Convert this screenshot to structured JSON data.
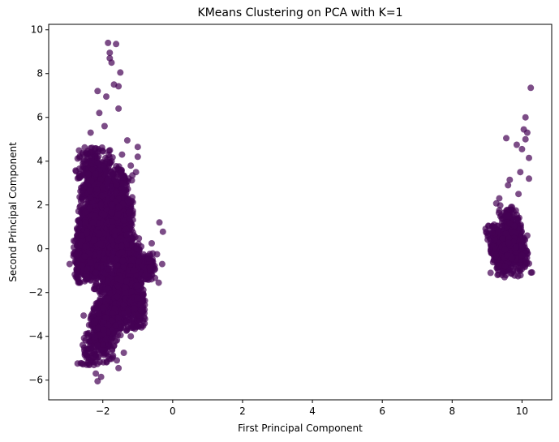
{
  "chart_data": {
    "type": "scatter",
    "title": "KMeans Clustering on PCA with K=1",
    "xlabel": "First Principal Component",
    "ylabel": "Second Principal Component",
    "xlim": [
      -3.55,
      10.85
    ],
    "ylim": [
      -6.9,
      10.25
    ],
    "x_ticks": [
      -2,
      0,
      2,
      4,
      6,
      8,
      10
    ],
    "y_ticks": [
      -6,
      -4,
      -2,
      0,
      2,
      4,
      6,
      8,
      10
    ],
    "x_tick_labels": [
      "−2",
      "0",
      "2",
      "4",
      "6",
      "8",
      "10"
    ],
    "y_tick_labels": [
      "−6",
      "−4",
      "−2",
      "0",
      "2",
      "4",
      "6",
      "8",
      "10"
    ],
    "grid": false,
    "legend": "none",
    "point_color": "#440154",
    "point_opacity": 0.7,
    "clusters_note_free": true,
    "series": [
      {
        "points": [
          [
            -1.85,
            9.4
          ],
          [
            -1.62,
            9.35
          ],
          [
            -1.8,
            8.95
          ],
          [
            -1.8,
            8.7
          ],
          [
            -1.75,
            8.5
          ],
          [
            -1.5,
            8.05
          ],
          [
            -1.68,
            7.5
          ],
          [
            -1.55,
            7.42
          ],
          [
            -2.15,
            7.2
          ],
          [
            -1.9,
            6.95
          ],
          [
            -1.3,
            4.95
          ],
          [
            -1.0,
            4.65
          ],
          [
            -1.45,
            4.3
          ],
          [
            -0.38,
            1.2
          ],
          [
            -0.28,
            0.78
          ],
          [
            -0.6,
            0.25
          ],
          [
            -0.9,
            0.1
          ],
          [
            -0.45,
            -0.25
          ],
          [
            -0.3,
            -0.7
          ],
          [
            -0.4,
            -1.55
          ],
          [
            -2.95,
            -0.7
          ],
          [
            -2.7,
            -1.55
          ],
          [
            -2.55,
            -3.05
          ],
          [
            -2.4,
            -5.0
          ],
          [
            -2.2,
            -5.7
          ],
          [
            -2.15,
            -6.05
          ],
          [
            -2.05,
            -5.85
          ],
          [
            -1.55,
            -5.45
          ],
          [
            -1.4,
            -4.75
          ],
          [
            -2.5,
            -4.8
          ],
          [
            -2.75,
            -0.3
          ],
          [
            -2.6,
            0.6
          ],
          [
            -1.95,
            5.6
          ],
          [
            -1.55,
            6.4
          ],
          [
            -1.0,
            4.2
          ],
          [
            -1.05,
            3.5
          ],
          [
            -2.35,
            5.3
          ],
          [
            -2.1,
            6.2
          ],
          [
            -1.6,
            -5.1
          ],
          [
            -1.2,
            -4.0
          ],
          [
            10.25,
            7.35
          ],
          [
            10.1,
            6.0
          ],
          [
            10.05,
            5.45
          ],
          [
            10.15,
            5.3
          ],
          [
            10.1,
            5.0
          ],
          [
            9.55,
            5.05
          ],
          [
            9.85,
            4.75
          ],
          [
            10.0,
            4.55
          ],
          [
            10.2,
            4.15
          ],
          [
            9.95,
            3.5
          ],
          [
            10.2,
            3.2
          ],
          [
            9.2,
            1.1
          ],
          [
            9.35,
            2.3
          ],
          [
            9.6,
            2.9
          ],
          [
            9.1,
            -1.1
          ],
          [
            9.3,
            -1.2
          ],
          [
            9.5,
            -1.3
          ],
          [
            9.75,
            -1.05
          ],
          [
            10.0,
            -0.3
          ],
          [
            10.15,
            0.6
          ],
          [
            9.65,
            3.15
          ],
          [
            9.9,
            2.5
          ]
        ],
        "regions": [
          {
            "cx": -2.05,
            "cy": 1.4,
            "rx": 0.55,
            "ry": 3.1,
            "tilt": -0.08,
            "n": 1400
          },
          {
            "cx": -1.8,
            "cy": -2.9,
            "rx": 0.5,
            "ry": 2.3,
            "tilt": 0.2,
            "n": 1000
          },
          {
            "cx": -2.35,
            "cy": 0.2,
            "rx": 0.4,
            "ry": 1.6,
            "tilt": 0.0,
            "n": 450
          },
          {
            "cx": -1.25,
            "cy": -0.8,
            "rx": 0.35,
            "ry": 1.4,
            "tilt": 0.0,
            "n": 450
          },
          {
            "cx": -1.45,
            "cy": 1.6,
            "rx": 0.3,
            "ry": 2.1,
            "tilt": 0.0,
            "n": 450
          },
          {
            "cx": -1.1,
            "cy": -2.6,
            "rx": 0.3,
            "ry": 1.1,
            "tilt": 0.0,
            "n": 250
          },
          {
            "cx": -2.6,
            "cy": -0.4,
            "rx": 0.25,
            "ry": 1.1,
            "tilt": 0.0,
            "n": 200
          },
          {
            "cx": -0.75,
            "cy": -0.8,
            "rx": 0.25,
            "ry": 0.6,
            "tilt": 0.0,
            "n": 120
          },
          {
            "cx": 9.35,
            "cy": -0.05,
            "rx": 0.26,
            "ry": 1.1,
            "tilt": -0.15,
            "n": 350
          },
          {
            "cx": 9.8,
            "cy": 0.4,
            "rx": 0.28,
            "ry": 1.6,
            "tilt": -0.15,
            "n": 350
          },
          {
            "cx": 9.6,
            "cy": 0.0,
            "rx": 0.25,
            "ry": 0.8,
            "tilt": 0.0,
            "n": 200
          }
        ]
      }
    ]
  }
}
